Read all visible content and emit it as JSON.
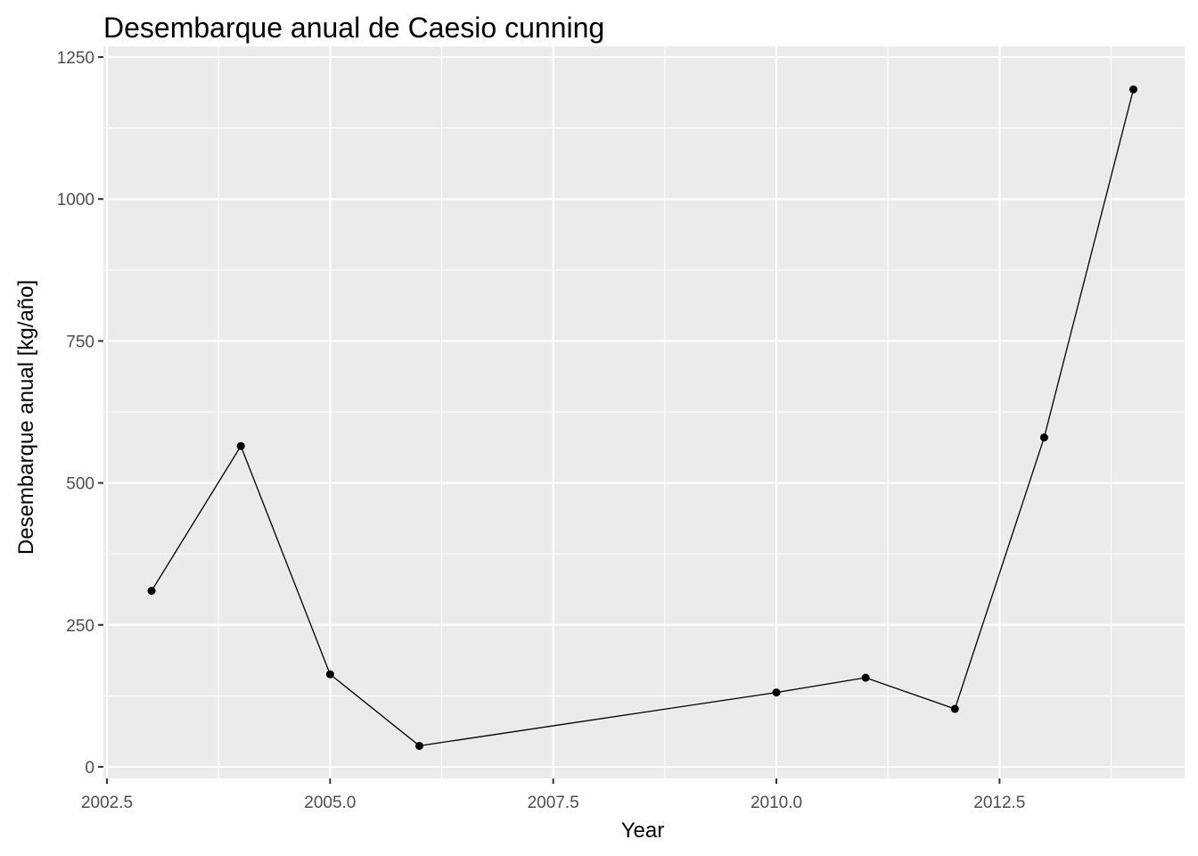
{
  "chart_data": {
    "type": "line",
    "title": "Desembarque anual de Caesio cunning",
    "xlabel": "Year",
    "ylabel": "Desembarque anual [kg/año]",
    "x": [
      2003,
      2004,
      2005,
      2006,
      2010,
      2011,
      2012,
      2013,
      2014
    ],
    "y": [
      310,
      565,
      163,
      37,
      131,
      157,
      102,
      580,
      1193
    ],
    "xlim": [
      2002.5,
      2014.5
    ],
    "ylim": [
      0,
      1250
    ],
    "x_ticks": [
      2002.5,
      2005.0,
      2007.5,
      2010.0,
      2012.5
    ],
    "x_tick_labels": [
      "2002.5",
      "2005.0",
      "2007.5",
      "2010.0",
      "2012.5"
    ],
    "y_ticks": [
      0,
      250,
      500,
      750,
      1000,
      1250
    ],
    "y_tick_labels": [
      "0",
      "250",
      "500",
      "750",
      "1000",
      "1250"
    ],
    "grid": true,
    "panel_background": "#ebebeb",
    "grid_color": "#ffffff",
    "line_color": "#000000",
    "point_color": "#000000"
  }
}
